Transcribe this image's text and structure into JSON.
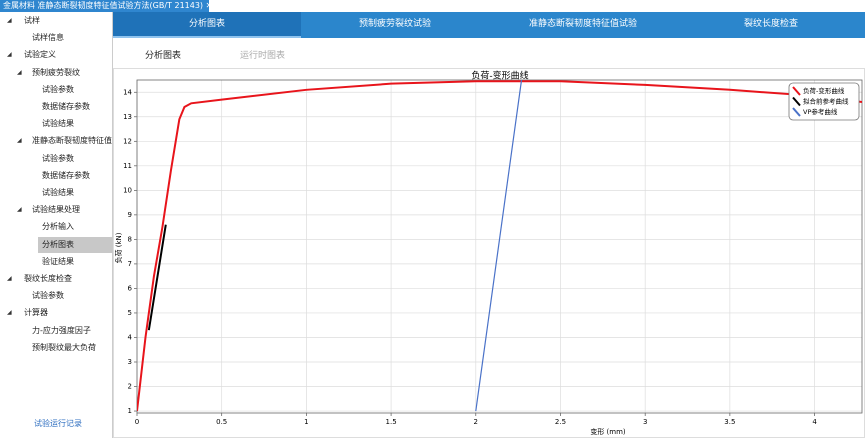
{
  "window_tab": {
    "title": "金属材料 准静态断裂韧度特征值试验方法(GB/T 21143)"
  },
  "sidebar": {
    "tree": [
      {
        "label": "试样",
        "children": [
          {
            "label": "试样信息"
          }
        ]
      },
      {
        "label": "试验定义",
        "children": [
          {
            "label": "预制疲劳裂纹",
            "children": [
              {
                "label": "试验参数"
              },
              {
                "label": "数据储存参数"
              },
              {
                "label": "试验结果"
              }
            ]
          },
          {
            "label": "准静态断裂韧度特征值",
            "children": [
              {
                "label": "试验参数"
              },
              {
                "label": "数据储存参数"
              },
              {
                "label": "试验结果"
              }
            ]
          },
          {
            "label": "试验结果处理",
            "children": [
              {
                "label": "分析输入"
              },
              {
                "label": "分析图表",
                "selected": true
              },
              {
                "label": "验证结果"
              }
            ]
          }
        ]
      },
      {
        "label": "裂纹长度检查",
        "children": [
          {
            "label": "试验参数"
          }
        ]
      },
      {
        "label": "计算器",
        "children": [
          {
            "label": "力-应力强度因子"
          },
          {
            "label": "预制裂纹最大负荷"
          }
        ]
      }
    ],
    "footer_link": "试验运行记录"
  },
  "tabs": {
    "items": [
      "分析图表",
      "预制疲劳裂纹试验",
      "准静态断裂韧度特征值试验",
      "裂纹长度检查"
    ],
    "selected": 0
  },
  "subtabs": {
    "items": [
      "分析图表",
      "运行时图表"
    ],
    "selected": 0
  },
  "chart_data": {
    "type": "line",
    "title": "负荷-变形曲线",
    "x_label": "变形 (mm)",
    "y_label": "负荷 (kN)",
    "xlim": [
      0,
      4.28
    ],
    "ylim": [
      0.92,
      14.5
    ],
    "xticks": [
      0,
      0.5,
      1,
      1.5,
      2,
      2.5,
      3,
      3.5,
      4
    ],
    "yticks": [
      1,
      2,
      3,
      4,
      5,
      6,
      7,
      8,
      9,
      10,
      11,
      12,
      13,
      14
    ],
    "grid": true,
    "legend": "top-right",
    "series": [
      {
        "name": "负荷-变形曲线",
        "color": "#e8141b",
        "x": [
          0,
          0.05,
          0.1,
          0.15,
          0.2,
          0.25,
          0.28,
          0.32,
          0.5,
          1,
          1.5,
          2,
          2.5,
          3,
          3.5,
          4,
          4.28
        ],
        "values": [
          1,
          4,
          6.5,
          8.5,
          10.8,
          12.9,
          13.4,
          13.55,
          13.7,
          14.1,
          14.35,
          14.45,
          14.45,
          14.3,
          14.1,
          13.85,
          13.6
        ]
      },
      {
        "name": "拟合前参考曲线",
        "color": "#000000",
        "x": [
          0.07,
          0.17
        ],
        "values": [
          4.3,
          8.6
        ]
      },
      {
        "name": "VP参考曲线",
        "color": "#4a72c8",
        "x": [
          2,
          2.27
        ],
        "values": [
          1,
          14.5
        ]
      }
    ]
  }
}
